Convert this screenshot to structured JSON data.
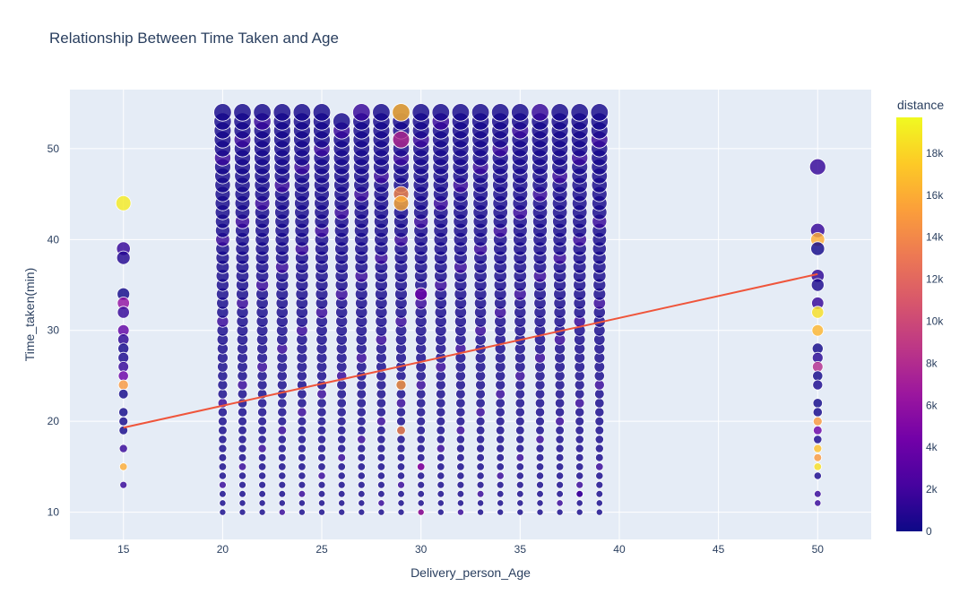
{
  "chart_data": {
    "type": "scatter",
    "title": "Relationship Between Time Taken and Age",
    "xlabel": "Delivery_person_Age",
    "ylabel": "Time_taken(min)",
    "xlim": [
      12.3,
      52.7
    ],
    "ylim": [
      7.0,
      56.5
    ],
    "x_ticks": [
      15,
      20,
      25,
      30,
      35,
      40,
      45,
      50
    ],
    "y_ticks": [
      10,
      20,
      30,
      40,
      50
    ],
    "grid": true,
    "colorbar": {
      "title": "distance",
      "range": [
        0,
        19700
      ],
      "ticks": [
        0,
        2000,
        4000,
        6000,
        8000,
        10000,
        12000,
        14000,
        16000,
        18000
      ],
      "tick_labels": [
        "0",
        "2k",
        "4k",
        "6k",
        "8k",
        "10k",
        "12k",
        "14k",
        "16k",
        "18k"
      ],
      "colorscale": [
        "#0d0887",
        "#46039f",
        "#7201a8",
        "#9c179e",
        "#bd3786",
        "#d8576b",
        "#ed7953",
        "#fb9f3a",
        "#fdca26",
        "#f0f921"
      ]
    },
    "ages_dense": [
      20,
      21,
      22,
      23,
      24,
      25,
      26,
      27,
      28,
      29,
      30,
      31,
      32,
      33,
      34,
      35,
      36,
      37,
      38,
      39
    ],
    "time_range_dense": [
      10,
      54
    ],
    "dense_max": {
      "20": 54,
      "21": 54,
      "22": 54,
      "23": 54,
      "24": 54,
      "25": 54,
      "26": 53,
      "27": 54,
      "28": 54,
      "29": 54,
      "30": 54,
      "31": 54,
      "32": 54,
      "33": 54,
      "34": 54,
      "35": 54,
      "36": 54,
      "37": 54,
      "38": 54,
      "39": 54
    },
    "points_age_15": [
      {
        "x": 15,
        "y": 44,
        "distance": 19000
      },
      {
        "x": 15,
        "y": 39,
        "distance": 1500
      },
      {
        "x": 15,
        "y": 38,
        "distance": 800
      },
      {
        "x": 15,
        "y": 34,
        "distance": 200
      },
      {
        "x": 15,
        "y": 33,
        "distance": 6000
      },
      {
        "x": 15,
        "y": 32,
        "distance": 1500
      },
      {
        "x": 15,
        "y": 30,
        "distance": 3500
      },
      {
        "x": 15,
        "y": 29,
        "distance": 1200
      },
      {
        "x": 15,
        "y": 28,
        "distance": 300
      },
      {
        "x": 15,
        "y": 27,
        "distance": 500
      },
      {
        "x": 15,
        "y": 26,
        "distance": 1500
      },
      {
        "x": 15,
        "y": 25,
        "distance": 4000
      },
      {
        "x": 15,
        "y": 24,
        "distance": 15000
      },
      {
        "x": 15,
        "y": 23,
        "distance": 200
      },
      {
        "x": 15,
        "y": 21,
        "distance": 200
      },
      {
        "x": 15,
        "y": 20,
        "distance": 300
      },
      {
        "x": 15,
        "y": 19,
        "distance": 300
      },
      {
        "x": 15,
        "y": 17,
        "distance": 1500
      },
      {
        "x": 15,
        "y": 15,
        "distance": 16000
      },
      {
        "x": 15,
        "y": 13,
        "distance": 1500
      }
    ],
    "points_age_50": [
      {
        "x": 50,
        "y": 48,
        "distance": 1500
      },
      {
        "x": 50,
        "y": 41,
        "distance": 1500
      },
      {
        "x": 50,
        "y": 40,
        "distance": 16000
      },
      {
        "x": 50,
        "y": 39,
        "distance": 200
      },
      {
        "x": 50,
        "y": 36,
        "distance": 1200
      },
      {
        "x": 50,
        "y": 35,
        "distance": 500
      },
      {
        "x": 50,
        "y": 33,
        "distance": 1500
      },
      {
        "x": 50,
        "y": 32,
        "distance": 18500
      },
      {
        "x": 50,
        "y": 30,
        "distance": 16500
      },
      {
        "x": 50,
        "y": 28,
        "distance": 200
      },
      {
        "x": 50,
        "y": 27,
        "distance": 1000
      },
      {
        "x": 50,
        "y": 26,
        "distance": 8000
      },
      {
        "x": 50,
        "y": 25,
        "distance": 200
      },
      {
        "x": 50,
        "y": 24,
        "distance": 500
      },
      {
        "x": 50,
        "y": 22,
        "distance": 200
      },
      {
        "x": 50,
        "y": 21,
        "distance": 300
      },
      {
        "x": 50,
        "y": 20,
        "distance": 15000
      },
      {
        "x": 50,
        "y": 19,
        "distance": 4000
      },
      {
        "x": 50,
        "y": 18,
        "distance": 500
      },
      {
        "x": 50,
        "y": 17,
        "distance": 17000
      },
      {
        "x": 50,
        "y": 16,
        "distance": 15000
      },
      {
        "x": 50,
        "y": 15,
        "distance": 18500
      },
      {
        "x": 50,
        "y": 14,
        "distance": 500
      },
      {
        "x": 50,
        "y": 12,
        "distance": 1500
      },
      {
        "x": 50,
        "y": 11,
        "distance": 1500
      }
    ],
    "highlight_points": [
      {
        "x": 29,
        "y": 54,
        "distance": 16500
      },
      {
        "x": 29,
        "y": 51,
        "distance": 8000
      },
      {
        "x": 29,
        "y": 45,
        "distance": 14000
      },
      {
        "x": 29,
        "y": 44,
        "distance": 16000
      },
      {
        "x": 29,
        "y": 24,
        "distance": 15000
      },
      {
        "x": 29,
        "y": 19,
        "distance": 14000
      },
      {
        "x": 30,
        "y": 34,
        "distance": 4000
      },
      {
        "x": 30,
        "y": 15,
        "distance": 6000
      },
      {
        "x": 30,
        "y": 10,
        "distance": 7000
      },
      {
        "x": 38,
        "y": 12,
        "distance": 2000
      }
    ],
    "trendline": {
      "color": "#ef553b",
      "x": [
        15,
        50
      ],
      "y": [
        19.3,
        36.2
      ]
    }
  }
}
